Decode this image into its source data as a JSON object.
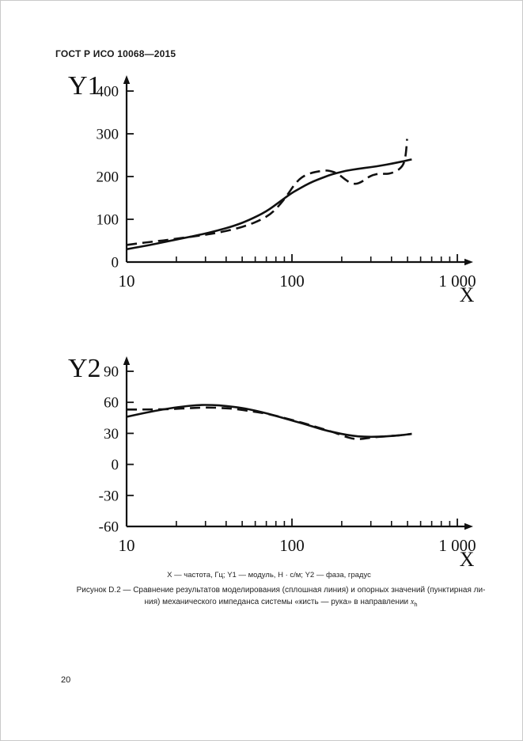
{
  "page": {
    "header_title": "ГОСТ Р ИСО 10068—2015",
    "page_number": "20"
  },
  "colors": {
    "ink": "#111111",
    "paper": "#ffffff"
  },
  "caption": {
    "legend_line": "X — частота, Гц; Y1 — модуль, Н · с/м; Y2 — фаза, градус",
    "figure_line1": "Рисунок D.2 — Сравнение результатов моделирования (сплошная линия) и опорных значений (пунктирная ли-",
    "figure_line2_prefix": "ния) механического импеданса системы «кисть — рука» в направлении ",
    "formula_base": "x",
    "formula_sub": "h"
  },
  "chart_data": [
    {
      "type": "line",
      "name": "magnitude-vs-frequency",
      "x_scale": "log",
      "xlabel": "X",
      "ylabel": "Y1",
      "xlim": [
        10,
        1230
      ],
      "ylim": [
        0,
        433
      ],
      "grid": false,
      "legend_position": "none",
      "x_major_ticks": [
        {
          "value": 10,
          "label": "10"
        },
        {
          "value": 100,
          "label": "100"
        },
        {
          "value": 1000,
          "label": "1 000"
        }
      ],
      "x_minor_ticks": [
        20,
        30,
        40,
        50,
        60,
        70,
        80,
        90,
        200,
        300,
        400,
        500,
        600,
        700,
        800,
        900
      ],
      "y_ticks": [
        {
          "value": 0,
          "label": "0"
        },
        {
          "value": 100,
          "label": "100"
        },
        {
          "value": 200,
          "label": "200"
        },
        {
          "value": 300,
          "label": "300"
        },
        {
          "value": 400,
          "label": "400"
        }
      ],
      "series": [
        {
          "name": "моделирование (сплошная линия)",
          "style": "solid",
          "points": [
            [
              10,
              30
            ],
            [
              13,
              38
            ],
            [
              17,
              47
            ],
            [
              22,
              56
            ],
            [
              28,
              64
            ],
            [
              35,
              73
            ],
            [
              45,
              85
            ],
            [
              55,
              98
            ],
            [
              70,
              118
            ],
            [
              85,
              142
            ],
            [
              100,
              162
            ],
            [
              110,
              171
            ],
            [
              120,
              179
            ],
            [
              135,
              189
            ],
            [
              150,
              196
            ],
            [
              165,
              202
            ],
            [
              185,
              208
            ],
            [
              215,
              214
            ],
            [
              250,
              218
            ],
            [
              300,
              222
            ],
            [
              350,
              226
            ],
            [
              400,
              230
            ],
            [
              450,
              234
            ],
            [
              500,
              238
            ],
            [
              530,
              240
            ]
          ]
        },
        {
          "name": "опорные значения (пунктирная линия)",
          "style": "dashed",
          "points": [
            [
              10,
              40
            ],
            [
              13,
              46
            ],
            [
              17,
              51
            ],
            [
              22,
              57
            ],
            [
              28,
              62
            ],
            [
              35,
              68
            ],
            [
              45,
              77
            ],
            [
              55,
              87
            ],
            [
              65,
              99
            ],
            [
              75,
              113
            ],
            [
              85,
              135
            ],
            [
              95,
              160
            ],
            [
              102,
              178
            ],
            [
              110,
              193
            ],
            [
              120,
              203
            ],
            [
              132,
              209
            ],
            [
              145,
              212
            ],
            [
              160,
              215
            ],
            [
              180,
              211
            ],
            [
              195,
              203
            ],
            [
              210,
              193
            ],
            [
              225,
              185
            ],
            [
              245,
              182
            ],
            [
              265,
              188
            ],
            [
              285,
              197
            ],
            [
              310,
              204
            ],
            [
              340,
              207
            ],
            [
              370,
              206
            ],
            [
              400,
              208
            ],
            [
              430,
              213
            ],
            [
              455,
              220
            ],
            [
              475,
              230
            ],
            [
              488,
              250
            ],
            [
              497,
              288
            ]
          ]
        }
      ]
    },
    {
      "type": "line",
      "name": "phase-vs-frequency",
      "x_scale": "log",
      "xlabel": "X",
      "ylabel": "Y2",
      "xlim": [
        10,
        1230
      ],
      "ylim": [
        -60,
        103
      ],
      "grid": false,
      "legend_position": "none",
      "x_major_ticks": [
        {
          "value": 10,
          "label": "10"
        },
        {
          "value": 100,
          "label": "100"
        },
        {
          "value": 1000,
          "label": "1 000"
        }
      ],
      "x_minor_ticks": [
        20,
        30,
        40,
        50,
        60,
        70,
        80,
        90,
        200,
        300,
        400,
        500,
        600,
        700,
        800,
        900
      ],
      "y_ticks": [
        {
          "value": 90,
          "label": "90"
        },
        {
          "value": 60,
          "label": "60"
        },
        {
          "value": 30,
          "label": "30"
        },
        {
          "value": 0,
          "label": "0"
        },
        {
          "value": -30,
          "label": "-30"
        },
        {
          "value": -60,
          "label": "-60"
        }
      ],
      "series": [
        {
          "name": "моделирование (сплошная линия)",
          "style": "solid",
          "points": [
            [
              10,
              46
            ],
            [
              13,
              50
            ],
            [
              17,
              53.5
            ],
            [
              22,
              56
            ],
            [
              27,
              57.5
            ],
            [
              33,
              57.5
            ],
            [
              40,
              56.5
            ],
            [
              50,
              54.5
            ],
            [
              60,
              52
            ],
            [
              72,
              49
            ],
            [
              88,
              45
            ],
            [
              105,
              41.5
            ],
            [
              125,
              38
            ],
            [
              150,
              34
            ],
            [
              180,
              31
            ],
            [
              215,
              28.5
            ],
            [
              250,
              27
            ],
            [
              300,
              26.5
            ],
            [
              370,
              27
            ],
            [
              450,
              28
            ],
            [
              530,
              29.5
            ]
          ]
        },
        {
          "name": "опорные значения (пунктирная линия)",
          "style": "dashed",
          "points": [
            [
              10,
              53
            ],
            [
              14,
              53
            ],
            [
              19,
              53.5
            ],
            [
              25,
              54.5
            ],
            [
              31,
              55
            ],
            [
              38,
              54.5
            ],
            [
              46,
              53.5
            ],
            [
              56,
              51.5
            ],
            [
              68,
              49.5
            ],
            [
              82,
              46.5
            ],
            [
              100,
              43
            ],
            [
              120,
              39.5
            ],
            [
              145,
              35.5
            ],
            [
              175,
              31.5
            ],
            [
              205,
              27.5
            ],
            [
              235,
              24.5
            ],
            [
              265,
              24.5
            ],
            [
              300,
              26
            ],
            [
              360,
              27
            ],
            [
              450,
              28
            ],
            [
              530,
              29.5
            ]
          ]
        }
      ]
    }
  ]
}
